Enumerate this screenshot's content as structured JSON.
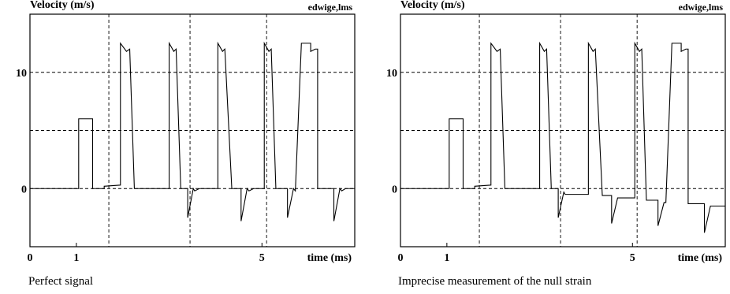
{
  "chart_data": [
    {
      "type": "line",
      "ylabel": "Velocity (m/s)",
      "tag": "edwige,lms",
      "xlabel": "time (ms)",
      "caption": "Perfect signal",
      "xlim": [
        0,
        7
      ],
      "ylim": [
        -5,
        15
      ],
      "x_ticks": [
        0,
        1,
        5
      ],
      "y_ticks": [
        0,
        10
      ],
      "grid": {
        "h": [
          0,
          5,
          10
        ],
        "v": [
          1.7,
          3.45,
          5.1
        ]
      },
      "series": [
        {
          "x": [
            0,
            1.05,
            1.05,
            1.35,
            1.35,
            1.6,
            1.6,
            1.95,
            1.95,
            2.08,
            2.15,
            2.15,
            2.25,
            3.0,
            3.0,
            3.1,
            3.15,
            3.15,
            3.25,
            3.4,
            3.4,
            3.52,
            3.55,
            3.55,
            3.65,
            4.05,
            4.05,
            4.15,
            4.2,
            4.2,
            4.35,
            4.55,
            4.55,
            4.68,
            4.72,
            4.72,
            4.82,
            5.05,
            5.05,
            5.15,
            5.2,
            5.2,
            5.3,
            5.55,
            5.55,
            5.68,
            5.72,
            5.72,
            5.85,
            6.05,
            6.05,
            6.15,
            6.2,
            6.2,
            6.35,
            6.55,
            6.55,
            6.68,
            6.72,
            6.72,
            6.8,
            7.0
          ],
          "y": [
            0,
            0,
            6,
            6,
            0,
            0,
            0.2,
            0.3,
            12.5,
            11.8,
            12.0,
            12.0,
            0,
            0,
            12.5,
            11.8,
            12.0,
            12.0,
            0,
            0,
            -2.5,
            0,
            -0.2,
            -0.2,
            0,
            0,
            12.5,
            11.8,
            12.0,
            12.0,
            0,
            0,
            -2.8,
            0,
            -0.2,
            -0.2,
            0,
            0,
            12.5,
            11.8,
            12.0,
            12.0,
            0,
            0,
            -2.5,
            0,
            -0.2,
            -0.2,
            12.5,
            12.5,
            11.8,
            12.0,
            12.0,
            0,
            0,
            0,
            -2.8,
            0,
            -0.2,
            -0.2,
            0,
            0
          ]
        }
      ]
    },
    {
      "type": "line",
      "ylabel": "Velocity (m/s)",
      "tag": "edwige,lms",
      "xlabel": "time (ms)",
      "caption": "Imprecise measurement of the null strain",
      "xlim": [
        0,
        7
      ],
      "ylim": [
        -5,
        15
      ],
      "x_ticks": [
        0,
        1,
        5
      ],
      "y_ticks": [
        0,
        10
      ],
      "grid": {
        "h": [
          0,
          5,
          10
        ],
        "v": [
          1.7,
          3.45,
          5.1
        ]
      },
      "series": [
        {
          "x": [
            0,
            1.05,
            1.05,
            1.35,
            1.35,
            1.6,
            1.6,
            1.95,
            1.95,
            2.08,
            2.15,
            2.15,
            2.25,
            3.0,
            3.0,
            3.1,
            3.15,
            3.15,
            3.25,
            3.4,
            3.4,
            3.52,
            3.55,
            3.55,
            3.65,
            4.05,
            4.05,
            4.15,
            4.2,
            4.2,
            4.35,
            4.55,
            4.55,
            4.68,
            4.72,
            4.72,
            4.82,
            5.05,
            5.05,
            5.15,
            5.2,
            5.2,
            5.3,
            5.55,
            5.55,
            5.68,
            5.72,
            5.72,
            5.85,
            6.05,
            6.05,
            6.15,
            6.2,
            6.2,
            6.35,
            6.55,
            6.55,
            6.68,
            6.72,
            6.72,
            6.8,
            7.0
          ],
          "y": [
            0,
            0,
            6,
            6,
            0,
            0,
            0.2,
            0.3,
            12.5,
            11.8,
            12.0,
            12.0,
            0,
            0,
            12.5,
            11.8,
            12.0,
            12.0,
            0,
            0,
            -2.5,
            -0.3,
            -0.5,
            -0.5,
            -0.5,
            -0.5,
            12.5,
            11.8,
            12.0,
            12.0,
            -0.6,
            -0.6,
            -3.0,
            -0.8,
            -0.8,
            -0.8,
            -0.8,
            -0.8,
            12.5,
            11.8,
            12.0,
            12.0,
            -1.0,
            -1.0,
            -3.2,
            -1.2,
            -1.2,
            -1.2,
            12.5,
            12.5,
            11.8,
            12.0,
            12.0,
            -1.3,
            -1.3,
            -1.3,
            -3.8,
            -1.5,
            -1.5,
            -1.5,
            -1.5,
            -1.5
          ]
        }
      ]
    }
  ]
}
